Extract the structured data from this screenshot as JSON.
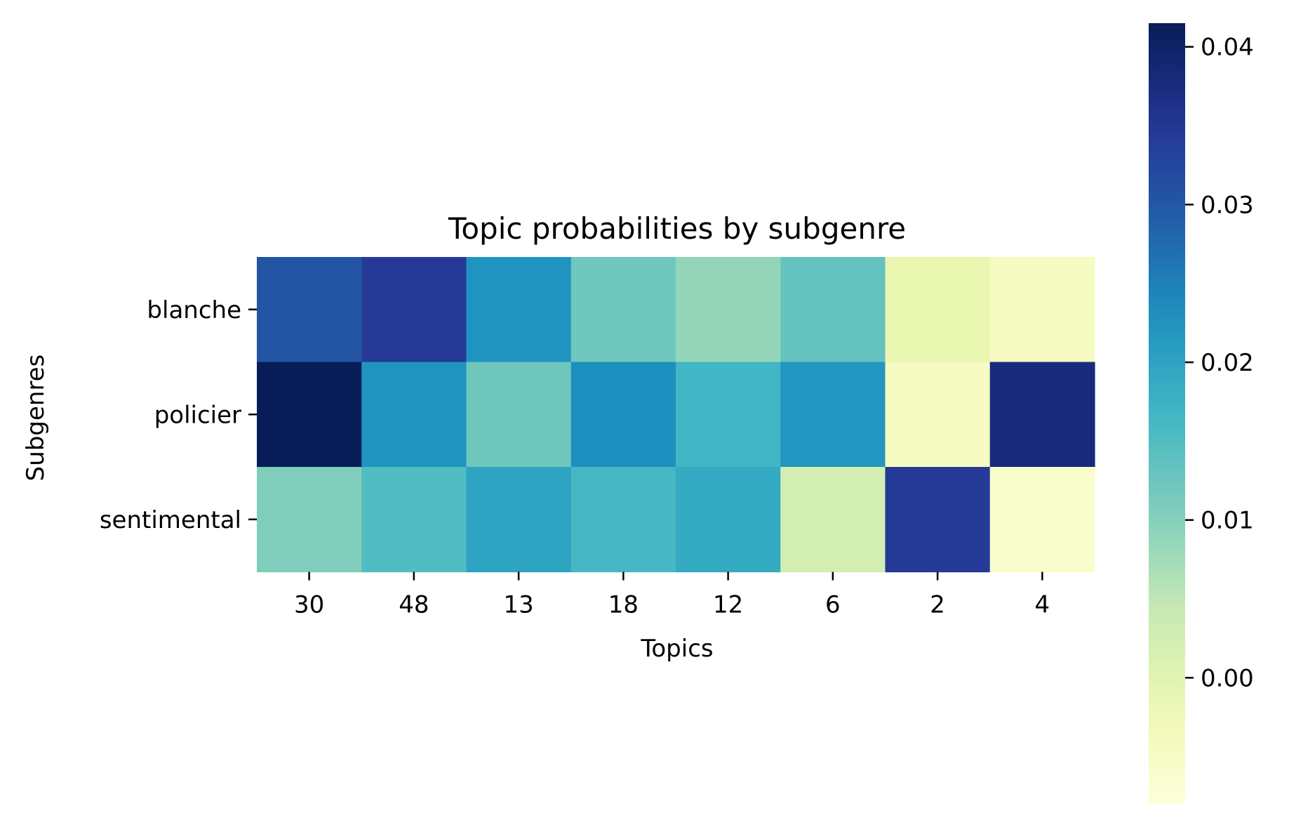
{
  "chart_data": {
    "type": "heatmap",
    "title": "Topic probabilities by subgenre",
    "xlabel": "Topics",
    "ylabel": "Subgenres",
    "x_categories": [
      "30",
      "48",
      "13",
      "18",
      "12",
      "6",
      "2",
      "4"
    ],
    "y_categories": [
      "blanche",
      "policier",
      "sentimental"
    ],
    "values": [
      [
        0.0305,
        0.0345,
        0.0225,
        0.0122,
        0.0088,
        0.0132,
        -0.0012,
        -0.0045
      ],
      [
        0.0415,
        0.0225,
        0.0122,
        0.0232,
        0.0168,
        0.022,
        -0.0045,
        0.038
      ],
      [
        0.0105,
        0.0152,
        0.02,
        0.0162,
        0.0188,
        0.0025,
        0.0345,
        -0.006
      ]
    ],
    "colormap": "YlGnBu",
    "colorbar": {
      "range": [
        -0.008,
        0.0415
      ],
      "ticks": [
        0.0,
        0.01,
        0.02,
        0.03,
        0.04
      ],
      "tick_labels": [
        "0.00",
        "0.01",
        "0.02",
        "0.03",
        "0.04"
      ]
    },
    "grid": false,
    "legend": "colorbar-right"
  }
}
